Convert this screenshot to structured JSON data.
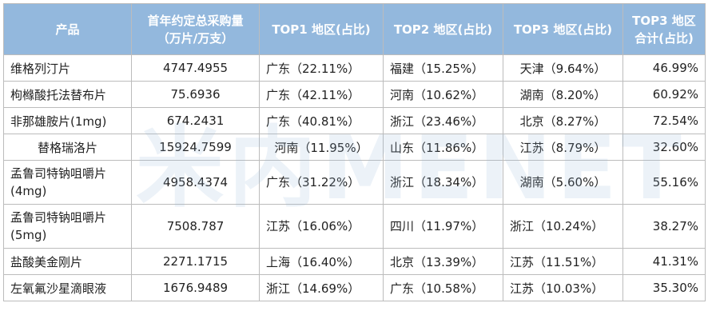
{
  "header": {
    "col_product": "产品",
    "col_volume_line1": "首年约定总采购量",
    "col_volume_line2": "（万片/万支）",
    "col_top1": "TOP1 地区(占比)",
    "col_top2": "TOP2 地区(占比)",
    "col_top3": "TOP3 地区(占比)",
    "col_total_line1": "TOP3 地区",
    "col_total_line2": "合计(占比)"
  },
  "rows": [
    {
      "product": "维格列汀片",
      "volume": "4747.4955",
      "top1": "广东（22.11%）",
      "top2": "福建（15.25%）",
      "top3": "天津（9.64%）",
      "total": "46.99%"
    },
    {
      "product": "枸橼酸托法替布片",
      "volume": "75.6936",
      "top1": "广东（42.11%）",
      "top2": "河南（10.62%）",
      "top3": "湖南（8.20%）",
      "total": "60.92%"
    },
    {
      "product": "非那雄胺片(1mg)",
      "volume": "674.2431",
      "top1": "广东（40.81%）",
      "top2": "浙江（23.46%）",
      "top3": "北京（8.27%）",
      "total": "72.54%"
    },
    {
      "product": "替格瑞洛片",
      "volume": "15924.7599",
      "top1": "河南（11.95%）",
      "top2": "山东（11.86%）",
      "top3": "江苏（8.79%）",
      "total": "32.60%"
    },
    {
      "product_line1": "孟鲁司特钠咀嚼片",
      "product_line2": "(4mg)",
      "volume": "4958.4374",
      "top1": "广东（31.22%）",
      "top2": "浙江（18.34%）",
      "top3": "湖南（5.60%）",
      "total": "55.16%"
    },
    {
      "product_line1": "孟鲁司特钠咀嚼片",
      "product_line2": "(5mg)",
      "volume": "7508.787",
      "top1": "江苏（16.06%）",
      "top2": "四川（11.97%）",
      "top3": "浙江（10.24%）",
      "total": "38.27%"
    },
    {
      "product": "盐酸美金刚片",
      "volume": "2271.1715",
      "top1": "上海（16.40%）",
      "top2": "北京（13.39%）",
      "top3": "江苏（11.51%）",
      "total": "41.31%"
    },
    {
      "product": "左氧氟沙星滴眼液",
      "volume": "1676.9489",
      "top1": "浙江（14.69%）",
      "top2": "广东（10.58%）",
      "top3": "江苏（10.03%）",
      "total": "35.30%"
    }
  ],
  "watermark": {
    "text": "米内MENET",
    "color": "#96b9d7"
  }
}
